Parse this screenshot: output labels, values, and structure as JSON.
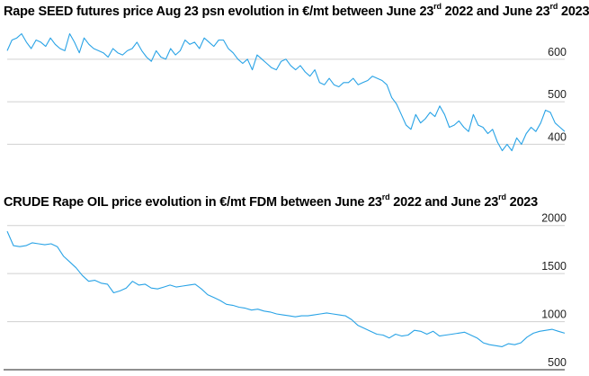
{
  "chart_data": [
    {
      "type": "line",
      "title": {
        "pre": "Rape SEED futures price Aug 23 psn evolution in €/mt between June 23",
        "sup1": "rd",
        "mid": " 2022 and June 23",
        "sup2": "rd",
        "post": " 2023"
      },
      "xlabel": "",
      "ylabel": "",
      "x_range": [
        "2022-06-23",
        "2023-06-23"
      ],
      "ylim": [
        350,
        680
      ],
      "yticks": [
        400,
        500,
        600
      ],
      "grid": true,
      "series": [
        {
          "color": "#29a3e6",
          "values": [
            620,
            645,
            650,
            660,
            640,
            625,
            645,
            640,
            630,
            650,
            635,
            625,
            620,
            660,
            640,
            615,
            650,
            635,
            625,
            620,
            615,
            605,
            625,
            615,
            610,
            620,
            625,
            640,
            620,
            605,
            595,
            620,
            605,
            600,
            625,
            610,
            620,
            645,
            635,
            640,
            625,
            650,
            640,
            630,
            645,
            645,
            625,
            615,
            600,
            590,
            600,
            575,
            610,
            600,
            590,
            580,
            575,
            595,
            600,
            585,
            575,
            585,
            570,
            560,
            575,
            545,
            540,
            555,
            540,
            535,
            545,
            545,
            555,
            540,
            545,
            550,
            560,
            555,
            550,
            540,
            510,
            495,
            470,
            445,
            435,
            470,
            450,
            460,
            475,
            465,
            490,
            470,
            440,
            445,
            455,
            440,
            430,
            470,
            445,
            440,
            425,
            435,
            405,
            385,
            400,
            385,
            415,
            400,
            425,
            440,
            430,
            450,
            480,
            475,
            450,
            440,
            430
          ]
        }
      ]
    },
    {
      "type": "line",
      "title": {
        "pre": "CRUDE Rape OIL price evolution in €/mt FDM between June 23",
        "sup1": "rd",
        "mid": " 2022 and June 23",
        "sup2": "rd",
        "post": " 2023"
      },
      "xlabel": "",
      "ylabel": "",
      "x_range": [
        "2022-06-23",
        "2023-06-23"
      ],
      "ylim": [
        500,
        2100
      ],
      "yticks": [
        500,
        1000,
        1500,
        2000
      ],
      "grid": true,
      "series": [
        {
          "color": "#29a3e6",
          "values": [
            1940,
            1790,
            1780,
            1790,
            1820,
            1810,
            1800,
            1810,
            1780,
            1680,
            1620,
            1560,
            1480,
            1420,
            1430,
            1400,
            1390,
            1300,
            1320,
            1350,
            1420,
            1380,
            1390,
            1350,
            1340,
            1360,
            1380,
            1360,
            1370,
            1380,
            1390,
            1340,
            1280,
            1250,
            1220,
            1180,
            1170,
            1150,
            1140,
            1120,
            1130,
            1110,
            1100,
            1080,
            1070,
            1060,
            1050,
            1060,
            1060,
            1070,
            1080,
            1090,
            1080,
            1070,
            1060,
            1020,
            960,
            930,
            900,
            870,
            860,
            830,
            870,
            850,
            860,
            910,
            900,
            870,
            900,
            850,
            860,
            870,
            880,
            890,
            860,
            830,
            780,
            760,
            750,
            740,
            770,
            760,
            780,
            840,
            880,
            900,
            910,
            920,
            900,
            880
          ]
        }
      ]
    }
  ]
}
